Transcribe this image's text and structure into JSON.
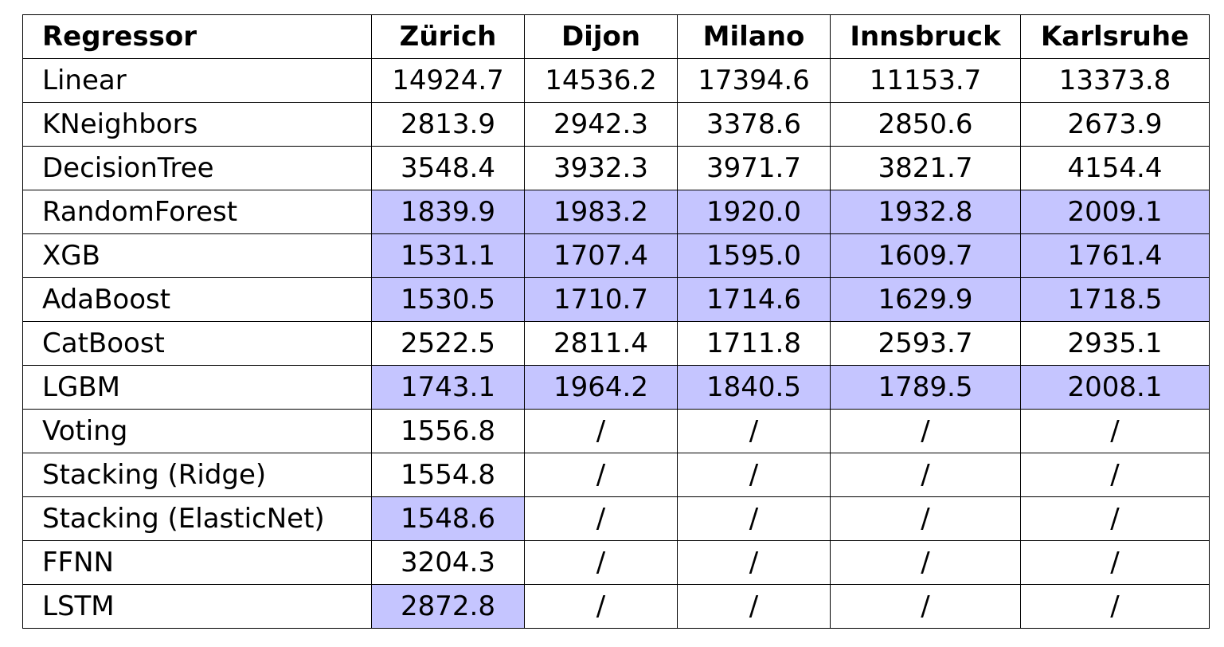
{
  "table": {
    "headers": [
      "Regressor",
      "Zürich",
      "Dijon",
      "Milano",
      "Innsbruck",
      "Karlsruhe"
    ],
    "highlight_color": "#c5c5ff",
    "rows": [
      {
        "name": "Linear",
        "values": [
          "14924.7",
          "14536.2",
          "17394.6",
          "11153.7",
          "13373.8"
        ],
        "highlight": [
          false,
          false,
          false,
          false,
          false
        ]
      },
      {
        "name": "KNeighbors",
        "values": [
          "2813.9",
          "2942.3",
          "3378.6",
          "2850.6",
          "2673.9"
        ],
        "highlight": [
          false,
          false,
          false,
          false,
          false
        ]
      },
      {
        "name": "DecisionTree",
        "values": [
          "3548.4",
          "3932.3",
          "3971.7",
          "3821.7",
          "4154.4"
        ],
        "highlight": [
          false,
          false,
          false,
          false,
          false
        ]
      },
      {
        "name": "RandomForest",
        "values": [
          "1839.9",
          "1983.2",
          "1920.0",
          "1932.8",
          "2009.1"
        ],
        "highlight": [
          true,
          true,
          true,
          true,
          true
        ]
      },
      {
        "name": "XGB",
        "values": [
          "1531.1",
          "1707.4",
          "1595.0",
          "1609.7",
          "1761.4"
        ],
        "highlight": [
          true,
          true,
          true,
          true,
          true
        ]
      },
      {
        "name": "AdaBoost",
        "values": [
          "1530.5",
          "1710.7",
          "1714.6",
          "1629.9",
          "1718.5"
        ],
        "highlight": [
          true,
          true,
          true,
          true,
          true
        ]
      },
      {
        "name": "CatBoost",
        "values": [
          "2522.5",
          "2811.4",
          "1711.8",
          "2593.7",
          "2935.1"
        ],
        "highlight": [
          false,
          false,
          false,
          false,
          false
        ]
      },
      {
        "name": "LGBM",
        "values": [
          "1743.1",
          "1964.2",
          "1840.5",
          "1789.5",
          "2008.1"
        ],
        "highlight": [
          true,
          true,
          true,
          true,
          true
        ]
      },
      {
        "name": "Voting",
        "values": [
          "1556.8",
          "/",
          "/",
          "/",
          "/"
        ],
        "highlight": [
          false,
          false,
          false,
          false,
          false
        ]
      },
      {
        "name": "Stacking (Ridge)",
        "values": [
          "1554.8",
          "/",
          "/",
          "/",
          "/"
        ],
        "highlight": [
          false,
          false,
          false,
          false,
          false
        ]
      },
      {
        "name": "Stacking (ElasticNet)",
        "values": [
          "1548.6",
          "/",
          "/",
          "/",
          "/"
        ],
        "highlight": [
          true,
          false,
          false,
          false,
          false
        ]
      },
      {
        "name": "FFNN",
        "values": [
          "3204.3",
          "/",
          "/",
          "/",
          "/"
        ],
        "highlight": [
          false,
          false,
          false,
          false,
          false
        ]
      },
      {
        "name": "LSTM",
        "values": [
          "2872.8",
          "/",
          "/",
          "/",
          "/"
        ],
        "highlight": [
          true,
          false,
          false,
          false,
          false
        ]
      }
    ]
  }
}
